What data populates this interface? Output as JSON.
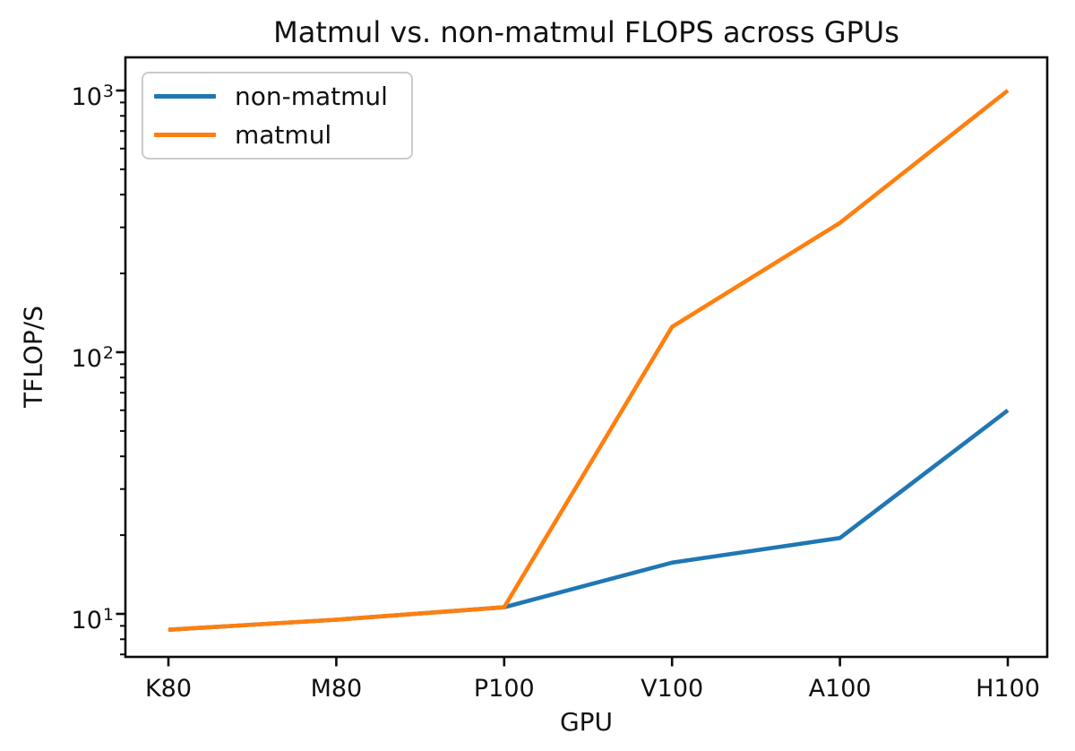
{
  "chart_data": {
    "type": "line",
    "title": "Matmul vs. non-matmul FLOPS across GPUs",
    "xlabel": "GPU",
    "ylabel": "TFLOP/S",
    "categories": [
      "K80",
      "M80",
      "P100",
      "V100",
      "A100",
      "H100"
    ],
    "series": [
      {
        "name": "non-matmul",
        "color": "#1f77b4",
        "values": [
          8.7,
          9.5,
          10.6,
          15.7,
          19.5,
          60
        ]
      },
      {
        "name": "matmul",
        "color": "#ff7f0e",
        "values": [
          8.7,
          9.5,
          10.6,
          125,
          312,
          1000
        ]
      }
    ],
    "y_scale": "log",
    "y_ticks": [
      {
        "label": "10^1",
        "base": "10",
        "exp": "1",
        "value": 10
      },
      {
        "label": "10^2",
        "base": "10",
        "exp": "2",
        "value": 100
      },
      {
        "label": "10^3",
        "base": "10",
        "exp": "3",
        "value": 1000
      }
    ],
    "ylim": [
      6.9,
      1350
    ],
    "grid": false,
    "legend_position": "upper left"
  },
  "colors": {
    "spine": "#0b0b0b",
    "tick": "#0b0b0b",
    "text": "#111111",
    "background": "#ffffff",
    "legend_border": "#cbcbcb"
  }
}
